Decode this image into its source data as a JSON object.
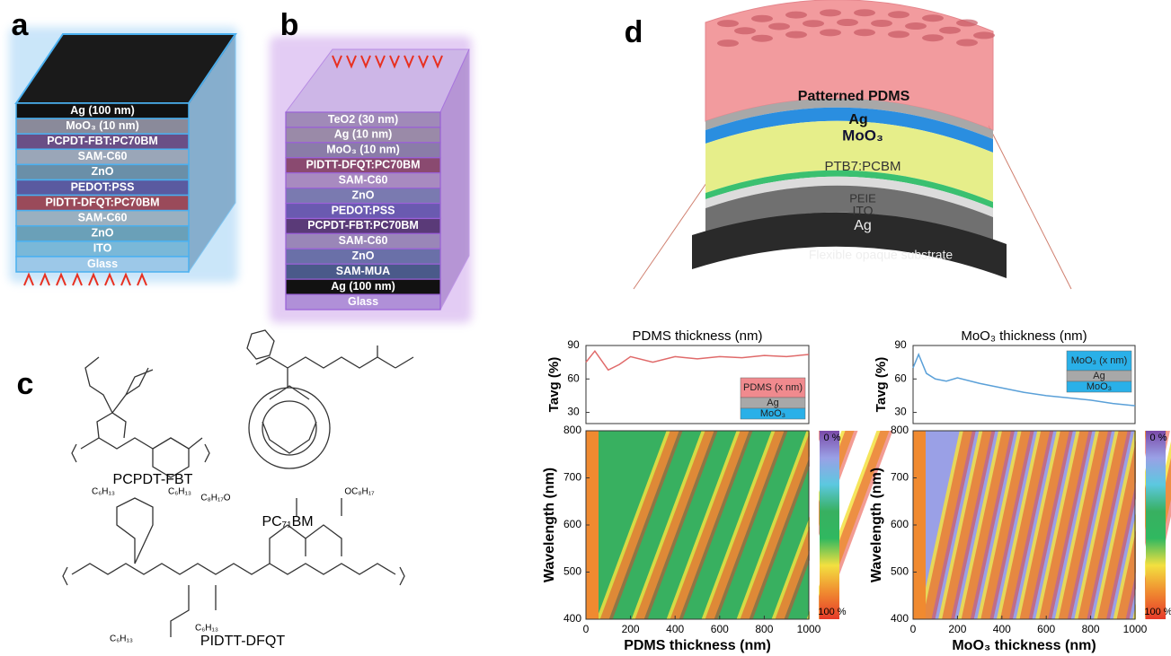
{
  "panel_a": {
    "label": "a",
    "layers": [
      {
        "text": "Ag (100 nm)",
        "color": "#111111"
      },
      {
        "text": "MoO₃ (10 nm)",
        "color": "#8a8a9a"
      },
      {
        "text": "PCPDT-FBT:PC70BM",
        "color": "#6a4f86"
      },
      {
        "text": "SAM-C60",
        "color": "#9aa6b8"
      },
      {
        "text": "ZnO",
        "color": "#6a8fa8"
      },
      {
        "text": "PEDOT:PSS",
        "color": "#5a5aa0"
      },
      {
        "text": "PIDTT-DFQT:PC70BM",
        "color": "#9a4a5a"
      },
      {
        "text": "SAM-C60",
        "color": "#9ab0c0"
      },
      {
        "text": "ZnO",
        "color": "#6aa0b8"
      },
      {
        "text": "ITO",
        "color": "#7ab8d8"
      },
      {
        "text": "Glass",
        "color": "#9cc8e8"
      }
    ]
  },
  "panel_b": {
    "label": "b",
    "layers": [
      {
        "text": "TeO2 (30 nm)",
        "color": "#a08ab8"
      },
      {
        "text": "Ag (10 nm)",
        "color": "#9a8aa8"
      },
      {
        "text": "MoO₃ (10 nm)",
        "color": "#8a7ca8"
      },
      {
        "text": "PIDTT-DFQT:PC70BM",
        "color": "#8a4a70"
      },
      {
        "text": "SAM-C60",
        "color": "#a88ac0"
      },
      {
        "text": "ZnO",
        "color": "#7a7ab0"
      },
      {
        "text": "PEDOT:PSS",
        "color": "#6a5ab0"
      },
      {
        "text": "PCPDT-FBT:PC70BM",
        "color": "#5a3a78"
      },
      {
        "text": "SAM-C60",
        "color": "#9a86b8"
      },
      {
        "text": "ZnO",
        "color": "#6a70a8"
      },
      {
        "text": "SAM-MUA",
        "color": "#4a5a8a"
      },
      {
        "text": "Ag (100 nm)",
        "color": "#111111"
      },
      {
        "text": "Glass",
        "color": "#b090d8"
      }
    ]
  },
  "panel_c": {
    "label": "c",
    "molecules": [
      "PCPDT-FBT",
      "PC₇₁BM",
      "PIDTT-DFQT"
    ],
    "substituents": [
      "C₆H₁₃",
      "C₆H₁₃",
      "C₈H₁₇O",
      "OC₈H₁₇",
      "C₆H₁₃",
      "C₆H₁₃"
    ]
  },
  "panel_d": {
    "label": "d",
    "layers": [
      {
        "text": "Patterned PDMS",
        "color": "#f08a8e"
      },
      {
        "text": "Ag",
        "color": "#a8a8a8"
      },
      {
        "text": "MoO₃",
        "color": "#2a8ee0"
      },
      {
        "text": "PTB7:PCBM",
        "color": "#e6ee8a"
      },
      {
        "text": "PEIE",
        "color": "#3ac070"
      },
      {
        "text": "ITO",
        "color": "#dcdcdc"
      },
      {
        "text": "Ag",
        "color": "#707070"
      },
      {
        "text": "Flexible opaque substrate",
        "color": "#2a2a2a"
      }
    ]
  },
  "chart_data": [
    {
      "type": "line",
      "title": "PDMS thickness (nm)",
      "ylabel": "Tavg (%)",
      "color": "#e06a6a",
      "x": [
        0,
        40,
        100,
        150,
        200,
        300,
        400,
        500,
        600,
        700,
        800,
        900,
        1000
      ],
      "values": [
        75,
        85,
        68,
        73,
        80,
        75,
        80,
        78,
        80,
        79,
        81,
        80,
        82
      ],
      "xlim": [
        0,
        1000
      ],
      "ylim": [
        20,
        90
      ],
      "yticks": [
        30,
        60,
        90
      ],
      "inset": [
        "PDMS (x nm)",
        "Ag",
        "MoO₃"
      ],
      "inset_colors": [
        "#f08a8e",
        "#a8a8a8",
        "#2ab0e8"
      ]
    },
    {
      "type": "heatmap",
      "xlabel": "PDMS thickness (nm)",
      "ylabel": "Wavelength (nm)",
      "xlim": [
        0,
        1000
      ],
      "xticks": [
        0,
        200,
        400,
        600,
        800,
        1000
      ],
      "ylim": [
        400,
        800
      ],
      "yticks": [
        400,
        500,
        600,
        700,
        800
      ],
      "colorbar": [
        "0 %",
        "100 %"
      ],
      "colormap": [
        "#7a4aa8",
        "#9aa0e6",
        "#5cc8e0",
        "#38b060",
        "#30b860",
        "#f3e040",
        "#f08a30",
        "#e63a2a"
      ]
    },
    {
      "type": "line",
      "title": "MoO₃ thickness (nm)",
      "ylabel": "Tavg (%)",
      "color": "#5aa0d8",
      "x": [
        0,
        25,
        60,
        100,
        150,
        200,
        300,
        400,
        500,
        600,
        700,
        800,
        900,
        1000
      ],
      "values": [
        70,
        82,
        65,
        60,
        58,
        61,
        56,
        52,
        48,
        45,
        43,
        41,
        38,
        36
      ],
      "xlim": [
        0,
        1000
      ],
      "ylim": [
        20,
        90
      ],
      "yticks": [
        30,
        60,
        90
      ],
      "inset": [
        "MoO₃ (x nm)",
        "Ag",
        "MoO₃"
      ],
      "inset_colors": [
        "#2ab0e8",
        "#a8a8a8",
        "#2ab0e8"
      ]
    },
    {
      "type": "heatmap",
      "xlabel": "MoO₃ thickness (nm)",
      "ylabel": "Wavelength (nm)",
      "xlim": [
        0,
        1000
      ],
      "xticks": [
        0,
        200,
        400,
        600,
        800,
        1000
      ],
      "ylim": [
        400,
        800
      ],
      "yticks": [
        400,
        500,
        600,
        700,
        800
      ],
      "colorbar": [
        "0 %",
        "100 %"
      ],
      "colormap": [
        "#7a4aa8",
        "#9aa0e6",
        "#5cc8e0",
        "#38b060",
        "#30b860",
        "#f3e040",
        "#f08a30",
        "#e63a2a"
      ]
    }
  ]
}
